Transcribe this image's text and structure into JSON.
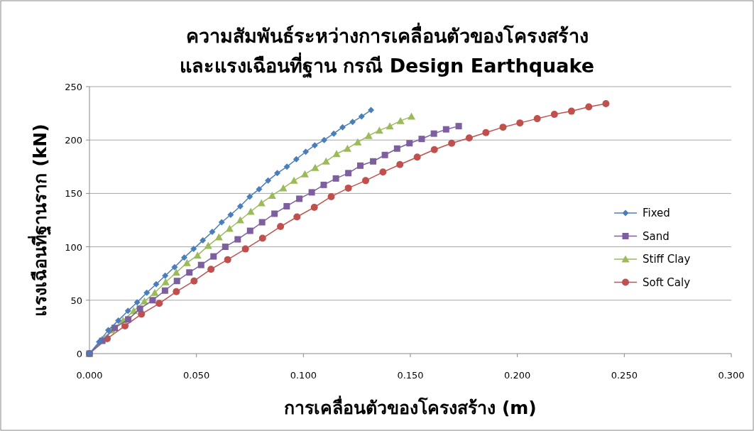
{
  "chart_data": {
    "type": "line",
    "title": "ความสัมพันธ์ระหว่างการเคลื่อนตัวของโครงสร้าง\nและแรงเฉือนที่ฐาน กรณี Design Earthquake",
    "xlabel": "การเคลื่อนตัวของโครงสร้าง (m)",
    "ylabel": "แรงเฉือนที่ฐานราก (kN)",
    "xlim": [
      0,
      0.3
    ],
    "ylim": [
      0,
      250
    ],
    "xticks": [
      {
        "value": 0,
        "label": "0.000"
      },
      {
        "value": 0.05,
        "label": "0.050"
      },
      {
        "value": 0.1,
        "label": "0.100"
      },
      {
        "value": 0.15,
        "label": "0.150"
      },
      {
        "value": 0.2,
        "label": "0.200"
      },
      {
        "value": 0.25,
        "label": "0.250"
      },
      {
        "value": 0.3,
        "label": "0.300"
      }
    ],
    "yticks": [
      0,
      50,
      100,
      150,
      200,
      250
    ],
    "grid": "y",
    "legend": "right",
    "series": [
      {
        "name": "Fixed",
        "color": "#4a7ebb",
        "marker": "diamond",
        "x": [
          0,
          0.0045,
          0.0088,
          0.0135,
          0.018,
          0.0223,
          0.0268,
          0.0312,
          0.0354,
          0.0398,
          0.0443,
          0.0487,
          0.053,
          0.0574,
          0.0618,
          0.066,
          0.0705,
          0.0749,
          0.0793,
          0.0835,
          0.0878,
          0.0923,
          0.0967,
          0.1011,
          0.1053,
          0.1097,
          0.1142,
          0.1183,
          0.123,
          0.1272,
          0.1316
        ],
        "values": [
          0,
          11,
          22,
          31,
          40,
          48,
          57,
          65,
          73,
          81,
          90,
          98,
          106,
          114,
          123,
          130,
          138,
          147,
          154,
          162,
          169,
          175,
          182,
          189,
          195,
          200,
          206,
          212,
          217,
          222,
          228
        ]
      },
      {
        "name": "Sand",
        "color": "#7d5fa0",
        "marker": "square",
        "x": [
          0,
          0.006,
          0.0118,
          0.0181,
          0.0236,
          0.0295,
          0.0353,
          0.0409,
          0.0467,
          0.0522,
          0.058,
          0.0635,
          0.0693,
          0.0751,
          0.0807,
          0.0865,
          0.0922,
          0.0981,
          0.1039,
          0.1095,
          0.1152,
          0.121,
          0.1266,
          0.1326,
          0.1381,
          0.1438,
          0.1496,
          0.1553,
          0.161,
          0.1667,
          0.1726
        ],
        "values": [
          0,
          12,
          24,
          32,
          42,
          50,
          59,
          68,
          76,
          83,
          91,
          100,
          107,
          115,
          123,
          131,
          138,
          145,
          151,
          158,
          164,
          169,
          176,
          180,
          186,
          192,
          197,
          201,
          206,
          210,
          213
        ]
      },
      {
        "name": "Stiff Clay",
        "color": "#9bbb59",
        "marker": "triangle",
        "x": [
          0,
          0.0058,
          0.0105,
          0.0157,
          0.0207,
          0.0257,
          0.0305,
          0.0356,
          0.0406,
          0.0456,
          0.0505,
          0.0555,
          0.0605,
          0.0655,
          0.0705,
          0.0754,
          0.0804,
          0.0854,
          0.0906,
          0.0956,
          0.1007,
          0.1055,
          0.1106,
          0.1155,
          0.1206,
          0.1254,
          0.1305,
          0.1355,
          0.1404,
          0.1454,
          0.1505
        ],
        "values": [
          0,
          13,
          22,
          31,
          40,
          49,
          57,
          67,
          76,
          85,
          92,
          101,
          109,
          117,
          125,
          133,
          141,
          148,
          155,
          162,
          168,
          174,
          180,
          187,
          192,
          198,
          204,
          209,
          213,
          218,
          222
        ]
      },
      {
        "name": "Soft Caly",
        "color": "#c0504d",
        "marker": "circle",
        "x": [
          0,
          0.0083,
          0.0166,
          0.0243,
          0.0326,
          0.0406,
          0.0489,
          0.0568,
          0.0646,
          0.0729,
          0.0809,
          0.0893,
          0.097,
          0.1051,
          0.113,
          0.121,
          0.1291,
          0.1372,
          0.1451,
          0.1532,
          0.1612,
          0.1693,
          0.1775,
          0.1853,
          0.1933,
          0.2012,
          0.2093,
          0.2173,
          0.2253,
          0.2334,
          0.2414
        ],
        "values": [
          0,
          14,
          26,
          37,
          47,
          58,
          68,
          79,
          88,
          98,
          108,
          119,
          128,
          137,
          147,
          155,
          162,
          170,
          177,
          184,
          191,
          197,
          202,
          207,
          212,
          216,
          220,
          224,
          227,
          231,
          234
        ]
      }
    ]
  }
}
